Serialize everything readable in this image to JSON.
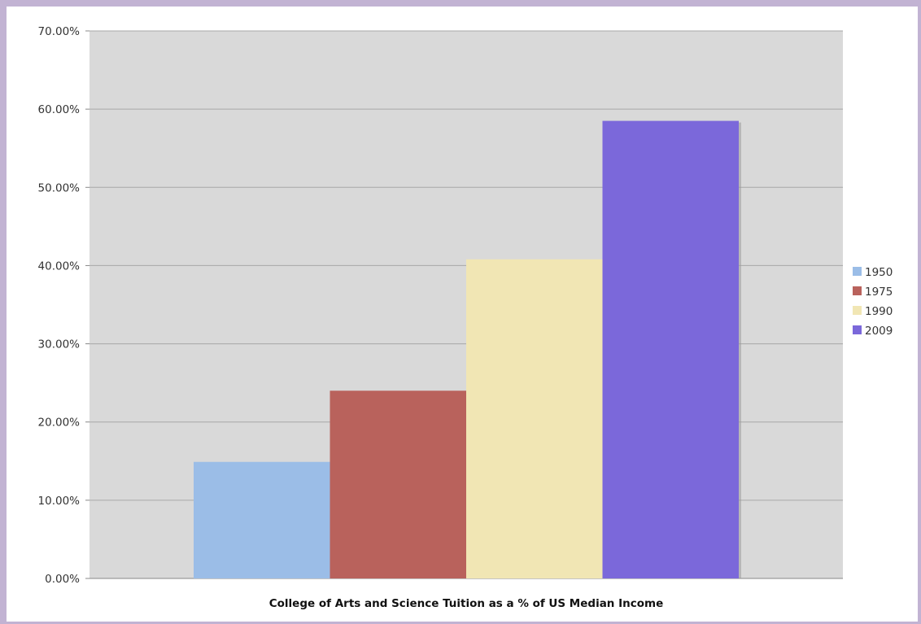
{
  "chart_data": {
    "type": "bar",
    "categories": [
      "College of Arts and Science Tuition as a % of US Median Income"
    ],
    "series": [
      {
        "name": "1950",
        "values": [
          0.149
        ],
        "color": "#9bbde7"
      },
      {
        "name": "1975",
        "values": [
          0.24
        ],
        "color": "#b9625c"
      },
      {
        "name": "1990",
        "values": [
          0.408
        ],
        "color": "#f1e6b4"
      },
      {
        "name": "2009",
        "values": [
          0.585
        ],
        "color": "#7b68da"
      }
    ],
    "ylim": [
      0,
      0.7
    ],
    "yticks": [
      0,
      0.1,
      0.2,
      0.3,
      0.4,
      0.5,
      0.6,
      0.7
    ],
    "ytick_labels": [
      "0.00%",
      "10.00%",
      "20.00%",
      "30.00%",
      "40.00%",
      "50.00%",
      "60.00%",
      "70.00%"
    ],
    "grid": true,
    "legend": "right",
    "plot_background": "#d9d9d9"
  }
}
